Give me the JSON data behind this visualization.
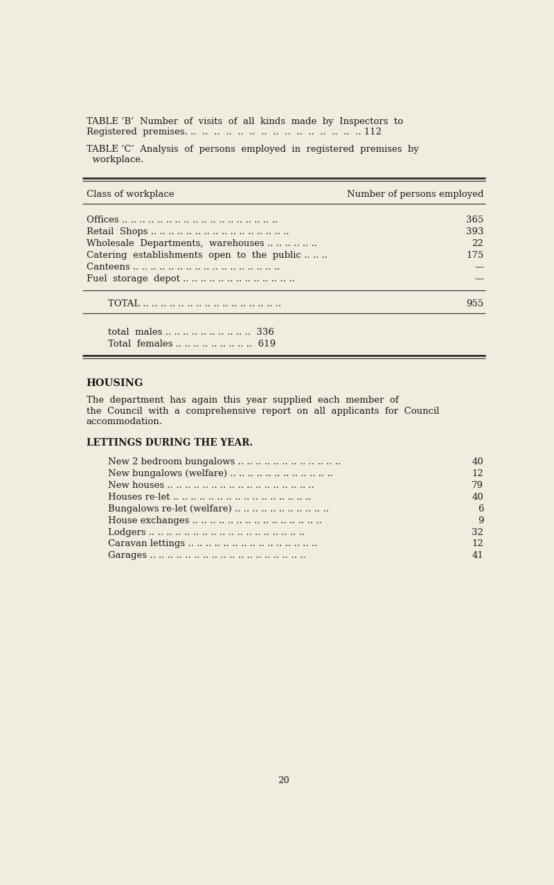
{
  "bg_color": "#f0ece0",
  "text_color": "#1a1a1a",
  "page_width": 8.0,
  "page_height": 12.77,
  "table_b_line1": "TABLE ‘B’  Number  of  visits  of  all  kinds  made  by  Inspectors  to",
  "table_b_line2": "Registered  premises. ..  ..  ..  ..  ..  ..  ..  ..  ..  ..  ..  ..  ..  ..  ..  .. 112",
  "table_c_line1": "TABLE ‘C’  Analysis  of  persons  employed  in  registered  premises  by",
  "table_c_line2": "  workplace.",
  "col_header_left": "Class of workplace",
  "col_header_right": "Number of persons employed",
  "workplace_rows": [
    [
      "Offices .. .. .. .. .. .. .. .. .. .. .. .. .. .. .. .. .. ..",
      "365"
    ],
    [
      "Retail  Shops .. .. .. .. .. .. .. .. .. .. .. .. .. .. .. ..",
      "393"
    ],
    [
      "Wholesale  Departments,  warehouses .. .. .. .. .. ..",
      "22"
    ],
    [
      "Catering  establishments  open  to  the  public .. .. ..",
      "175"
    ],
    [
      "Canteens .. .. .. .. .. .. .. .. .. .. .. .. .. .. .. .. ..",
      "—"
    ],
    [
      "Fuel  storage  depot .. .. .. .. .. .. .. .. .. .. .. .. ..",
      "—"
    ]
  ],
  "total_label": "TOTAL .. .. .. .. .. .. .. .. .. .. .. .. .. .. .. ..",
  "total_value": "955",
  "males_label": "total  males .. .. .. .. .. .. .. .. .. ..",
  "males_value": "336",
  "females_label": "Total  females .. .. .. .. .. .. .. .. ..",
  "females_value": "619",
  "housing_heading": "HOUSING",
  "housing_line1": "The department has again this year supplied each member of",
  "housing_line1_bold_start": "supplied each member of",
  "housing_line2": "the Council with a comprehensive report on all applicants for Council",
  "housing_line2_bold_words": "all applicants for Council",
  "housing_line3": "accommodation.",
  "lettings_heading": "LETTINGS DURING THE YEAR.",
  "lettings_rows": [
    [
      "New 2 bedroom bungalows .. .. .. .. .. .. .. .. .. .. .. ..",
      "40"
    ],
    [
      "New bungalows (welfare) .. .. .. .. .. .. .. .. .. .. .. ..",
      "12"
    ],
    [
      "New houses .. .. .. .. .. .. .. .. .. .. .. .. .. .. .. .. ..",
      "79"
    ],
    [
      "Houses re-let .. .. .. .. .. .. .. .. .. .. .. .. .. .. .. ..",
      "40"
    ],
    [
      "Bungalows re-let (welfare) .. .. .. .. .. .. .. .. .. .. ..",
      "6"
    ],
    [
      "House exchanges .. .. .. .. .. .. .. .. .. .. .. .. .. .. ..",
      "9"
    ],
    [
      "Lodgers .. .. .. .. .. .. .. .. .. .. .. .. .. .. .. .. .. ..",
      "32"
    ],
    [
      "Caravan lettings .. .. .. .. .. .. .. .. .. .. .. .. .. .. ..",
      "12"
    ],
    [
      "Garages .. .. .. .. .. .. .. .. .. .. .. .. .. .. .. .. .. ..",
      "41"
    ]
  ],
  "page_number": "20"
}
